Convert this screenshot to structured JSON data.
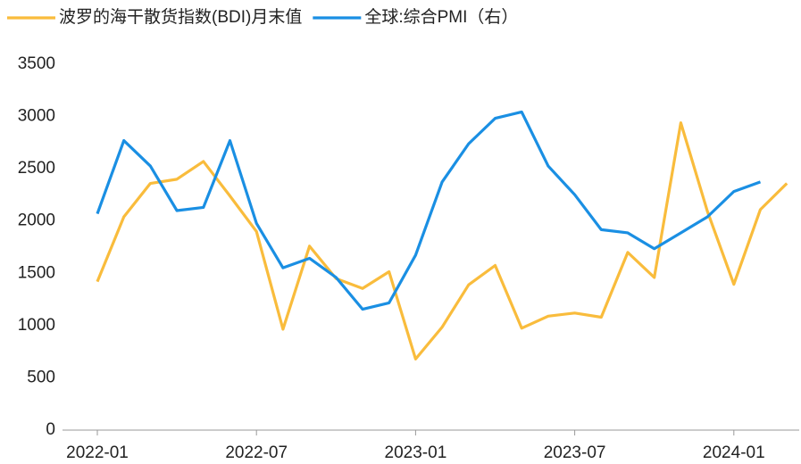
{
  "chart_data": {
    "type": "line",
    "categories": [
      "2022-01",
      null,
      null,
      null,
      null,
      null,
      "2022-07",
      null,
      null,
      null,
      null,
      null,
      "2023-01",
      null,
      null,
      null,
      null,
      null,
      "2023-07",
      null,
      null,
      null,
      null,
      null,
      "2024-01",
      null,
      null
    ],
    "series": [
      {
        "name": "波罗的海干散货指数(BDI)月末值",
        "color": "#f9bc3c",
        "values": [
          1420,
          2040,
          2360,
          2400,
          2570,
          2240,
          1900,
          965,
          1760,
          1450,
          1355,
          1515,
          680,
          985,
          1390,
          1575,
          975,
          1090,
          1120,
          1080,
          1700,
          1460,
          2940,
          2095,
          1395,
          2110,
          2360
        ]
      },
      {
        "name": "全球:综合PMI（右）",
        "color": "#1a8fe3",
        "axis": "y2",
        "values": [
          51.2,
          53.5,
          52.7,
          51.3,
          51.4,
          53.5,
          50.9,
          49.5,
          49.8,
          49.2,
          48.2,
          48.4,
          49.9,
          52.2,
          53.4,
          54.2,
          54.4,
          52.7,
          51.8,
          50.7,
          50.6,
          50.1,
          50.6,
          51.1,
          51.9,
          52.2,
          null
        ]
      }
    ],
    "ylim": [
      0,
      3500
    ],
    "yticks": [
      0,
      500,
      1000,
      1500,
      2000,
      2500,
      3000,
      3500
    ],
    "y2lim": [
      44.4,
      55.9
    ],
    "grid": false
  }
}
